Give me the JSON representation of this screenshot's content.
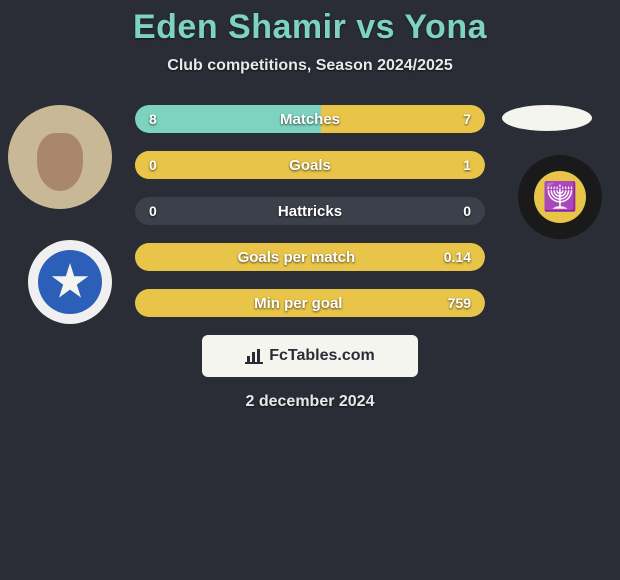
{
  "title": "Eden Shamir vs Yona",
  "subtitle": "Club competitions, Season 2024/2025",
  "date": "2 december 2024",
  "branding": "FcTables.com",
  "colors": {
    "title": "#7dd3c0",
    "bg": "#2a2d36",
    "left_fill": "#7dd3c0",
    "right_fill": "#e8c548",
    "base_pill": "#3c404a",
    "text": "#ffffff",
    "brand_bg": "#f5f5f0"
  },
  "stats": [
    {
      "label": "Matches",
      "left_val": "8",
      "right_val": "7",
      "left_pct": 53,
      "right_pct": 47
    },
    {
      "label": "Goals",
      "left_val": "0",
      "right_val": "1",
      "left_pct": 20,
      "right_pct": 100
    },
    {
      "label": "Hattricks",
      "left_val": "0",
      "right_val": "0",
      "left_pct": 0,
      "right_pct": 0
    },
    {
      "label": "Goals per match",
      "left_val": "",
      "right_val": "0.14",
      "left_pct": 0,
      "right_pct": 100
    },
    {
      "label": "Min per goal",
      "left_val": "",
      "right_val": "759",
      "left_pct": 0,
      "right_pct": 100
    }
  ],
  "style": {
    "title_fontsize": 34,
    "subtitle_fontsize": 16,
    "stat_label_fontsize": 15,
    "stat_value_fontsize": 14,
    "pill_height": 28,
    "pill_radius": 14,
    "pill_gap": 18,
    "stats_width": 350
  }
}
